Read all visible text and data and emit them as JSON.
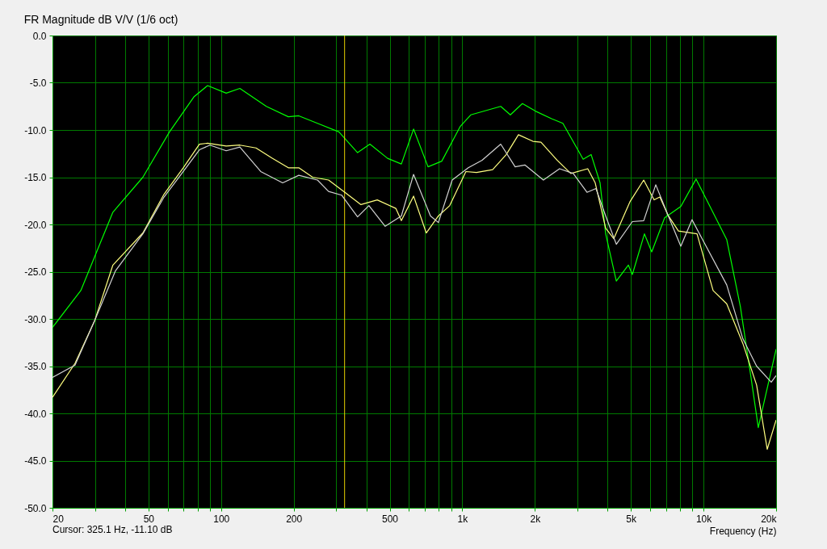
{
  "chart_data": {
    "type": "line",
    "title": "FR Magnitude dB V/V (1/6 oct)",
    "xlabel": "Frequency (Hz)",
    "log": "x",
    "grid": true,
    "marker": "none",
    "line_style": "solid",
    "xlim": [
      20,
      20000
    ],
    "ylim": [
      -50,
      0
    ],
    "xticks": [
      20,
      {
        "value": 30,
        "label": null
      },
      {
        "value": 40,
        "label": null
      },
      50,
      {
        "value": 60,
        "label": null
      },
      {
        "value": 70,
        "label": null
      },
      {
        "value": 80,
        "label": null
      },
      {
        "value": 90,
        "label": null
      },
      100,
      200,
      {
        "value": 300,
        "label": null
      },
      {
        "value": 400,
        "label": null
      },
      500,
      {
        "value": 600,
        "label": null
      },
      {
        "value": 700,
        "label": null
      },
      {
        "value": 800,
        "label": null
      },
      {
        "value": 900,
        "label": null
      },
      {
        "value": 1000,
        "label": "1k"
      },
      {
        "value": 2000,
        "label": "2k"
      },
      {
        "value": 3000,
        "label": null
      },
      {
        "value": 4000,
        "label": null
      },
      {
        "value": 5000,
        "label": "5k"
      },
      {
        "value": 6000,
        "label": null
      },
      {
        "value": 7000,
        "label": null
      },
      {
        "value": 8000,
        "label": null
      },
      {
        "value": 9000,
        "label": null
      },
      {
        "value": 10000,
        "label": "10k"
      },
      {
        "value": 20000,
        "label": "20k"
      }
    ],
    "yticks": [
      {
        "value": 0,
        "label": "0.0"
      },
      {
        "value": -5,
        "label": "-5.0"
      },
      {
        "value": -10,
        "label": "-10.0"
      },
      {
        "value": -15,
        "label": "-15.0"
      },
      {
        "value": -20,
        "label": "-20.0"
      },
      {
        "value": -25,
        "label": "-25.0"
      },
      {
        "value": -30,
        "label": "-30.0"
      },
      {
        "value": -35,
        "label": "-35.0"
      },
      {
        "value": -40,
        "label": "-40.0"
      },
      {
        "value": -45,
        "label": "-45.0"
      },
      {
        "value": -50,
        "label": "-50.0"
      }
    ],
    "ref_lines": [
      {
        "axis": "x",
        "value": 325.1,
        "color": "#e6d200"
      }
    ],
    "annotations": [
      "Cursor: 325.1 Hz, -11.10 dB"
    ],
    "series": [
      {
        "color": "#00ff00",
        "x": [
          20,
          26.2,
          35.6,
          47.4,
          61.1,
          77.1,
          87.9,
          105,
          119.6,
          154,
          190,
          210,
          251,
          308,
          368,
          414,
          490,
          559,
          628,
          721,
          822,
          982,
          1084,
          1443,
          1582,
          1775,
          2009,
          2344,
          2612,
          3170,
          3420,
          3725,
          3930,
          4350,
          4880,
          5070,
          5690,
          6100,
          6900,
          8050,
          9310,
          10690,
          12480,
          14220,
          15740,
          16870,
          20000
        ],
        "values": [
          -30.9,
          -27.0,
          -18.7,
          -15.0,
          -10.2,
          -6.5,
          -5.3,
          -6.1,
          -5.6,
          -7.5,
          -8.6,
          -8.5,
          -9.3,
          -10.2,
          -12.4,
          -11.5,
          -13.0,
          -13.6,
          -9.9,
          -13.9,
          -13.3,
          -9.6,
          -8.4,
          -7.5,
          -8.4,
          -7.2,
          -8.0,
          -8.8,
          -9.3,
          -13.1,
          -12.6,
          -15.6,
          -21.0,
          -26.0,
          -24.3,
          -25.3,
          -21.0,
          -22.9,
          -19.3,
          -18.1,
          -15.2,
          -18.2,
          -21.6,
          -28.7,
          -36.2,
          -41.5,
          -33.2
        ]
      },
      {
        "color": "#ffff80",
        "x": [
          20,
          24.8,
          29.9,
          35.6,
          47.4,
          58.0,
          69.7,
          81.3,
          87.9,
          105,
          119.6,
          139.5,
          163,
          190,
          210,
          239.5,
          279,
          326,
          380,
          444,
          530,
          559,
          628,
          709,
          796,
          887,
          1035,
          1145,
          1336,
          1522,
          1709,
          1963,
          2119,
          2472,
          2818,
          3312,
          3557,
          3930,
          4247,
          4955,
          5650,
          6240,
          6590,
          7120,
          7870,
          9400,
          10960,
          12480,
          14560,
          16600,
          18370,
          20000
        ],
        "values": [
          -38.3,
          -34.7,
          -30.2,
          -24.3,
          -20.9,
          -16.8,
          -14.0,
          -11.5,
          -11.4,
          -11.7,
          -11.6,
          -11.9,
          -13.0,
          -14.0,
          -14.0,
          -15.0,
          -15.3,
          -16.6,
          -17.9,
          -17.4,
          -18.3,
          -19.6,
          -17.0,
          -20.9,
          -19.1,
          -18.0,
          -14.4,
          -14.5,
          -14.2,
          -12.6,
          -10.5,
          -11.2,
          -11.3,
          -13.2,
          -14.6,
          -14.1,
          -15.6,
          -20.4,
          -21.5,
          -17.6,
          -15.3,
          -17.4,
          -17.1,
          -19.0,
          -20.7,
          -21.0,
          -27.0,
          -28.4,
          -32.6,
          -37.0,
          -43.8,
          -40.7
        ]
      },
      {
        "color": "#d2d2d2",
        "x": [
          20,
          24.8,
          29.9,
          36.5,
          47.4,
          58.0,
          69.7,
          81.3,
          89.9,
          105,
          119.6,
          146,
          180,
          210,
          251,
          279,
          316,
          368,
          410,
          479,
          559,
          628,
          738,
          796,
          908,
          1059,
          1208,
          1443,
          1656,
          1817,
          2169,
          2530,
          2884,
          3288,
          3582,
          3930,
          4350,
          5070,
          5650,
          6340,
          7120,
          8050,
          8960,
          9910,
          12480,
          14560,
          16600,
          19090,
          20000
        ],
        "values": [
          -36.2,
          -34.9,
          -30.2,
          -24.9,
          -21.0,
          -17.1,
          -14.4,
          -12.1,
          -11.6,
          -12.2,
          -11.8,
          -14.4,
          -15.6,
          -14.8,
          -15.3,
          -16.5,
          -16.9,
          -19.2,
          -18.0,
          -20.2,
          -19.1,
          -14.7,
          -19.1,
          -19.8,
          -15.3,
          -14.0,
          -13.2,
          -11.5,
          -13.9,
          -13.7,
          -15.3,
          -14.1,
          -14.6,
          -16.6,
          -16.2,
          -19.1,
          -22.1,
          -19.7,
          -19.6,
          -15.8,
          -19.0,
          -22.3,
          -19.5,
          -21.6,
          -26.4,
          -32.1,
          -35.0,
          -36.7,
          -36.0
        ]
      }
    ]
  }
}
